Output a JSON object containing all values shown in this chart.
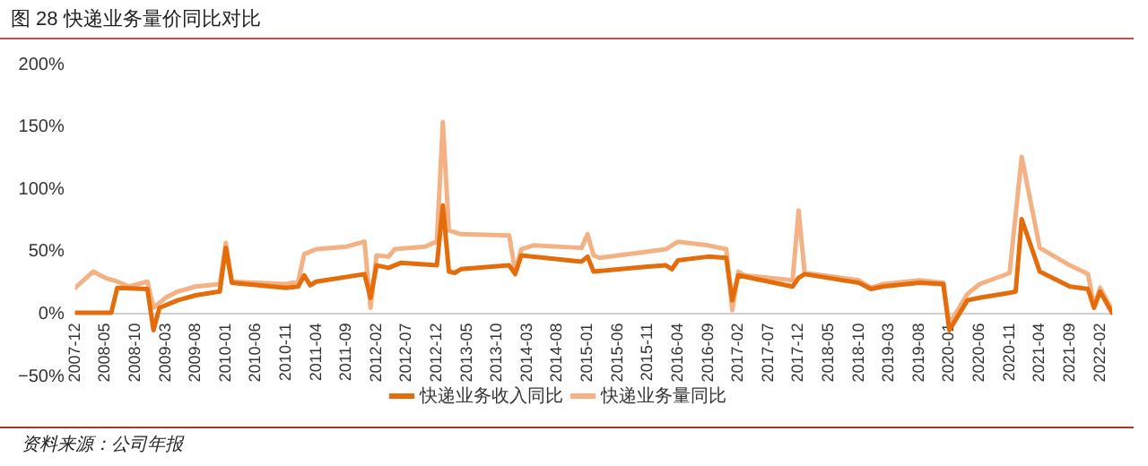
{
  "chart_data": {
    "type": "line",
    "title": "图 28 快递业务量价同比对比",
    "annotations": [
      "资料来源：公司年报"
    ],
    "legend": "bottom",
    "marker": "none",
    "line_style": "solid",
    "grid": false,
    "xlim": [
      "2007-12",
      "2022-04"
    ],
    "xticks": [
      "2007-12",
      "2008-05",
      "2008-10",
      "2009-03",
      "2009-08",
      "2010-01",
      "2010-06",
      "2010-11",
      "2011-04",
      "2011-09",
      "2012-02",
      "2012-07",
      "2012-12",
      "2013-05",
      "2013-10",
      "2014-03",
      "2014-08",
      "2015-01",
      "2015-06",
      "2015-11",
      "2016-04",
      "2016-09",
      "2017-02",
      "2017-07",
      "2017-12",
      "2018-05",
      "2018-10",
      "2019-03",
      "2019-08",
      "2020-01",
      "2020-06",
      "2020-11",
      "2021-04",
      "2021-09",
      "2022-02"
    ],
    "ylim": [
      -50,
      200
    ],
    "yticks": [
      {
        "value": -50,
        "label": "−50%"
      },
      {
        "value": 0,
        "label": "0%"
      },
      {
        "value": 50,
        "label": "50%"
      },
      {
        "value": 100,
        "label": "100%"
      },
      {
        "value": 150,
        "label": "150%"
      },
      {
        "value": 200,
        "label": "200%"
      }
    ],
    "series": [
      {
        "name": "快递业务收入同比",
        "color": "#e46c0a",
        "x": [
          "2007-12",
          "2008-06",
          "2008-07",
          "2008-12",
          "2009-01",
          "2009-02",
          "2009-05",
          "2009-08",
          "2009-12",
          "2010-01",
          "2010-02",
          "2010-11",
          "2011-01",
          "2011-02",
          "2011-03",
          "2011-04",
          "2011-12",
          "2012-01",
          "2012-02",
          "2012-04",
          "2012-06",
          "2012-12",
          "2013-01",
          "2013-02",
          "2013-03",
          "2013-04",
          "2013-12",
          "2014-01",
          "2014-02",
          "2014-12",
          "2015-01",
          "2015-02",
          "2015-11",
          "2016-02",
          "2016-03",
          "2016-04",
          "2016-09",
          "2016-12",
          "2017-01",
          "2017-02",
          "2017-11",
          "2017-12",
          "2018-01",
          "2018-10",
          "2018-12",
          "2019-02",
          "2019-08",
          "2019-12",
          "2020-01",
          "2020-04",
          "2020-06",
          "2020-11",
          "2020-12",
          "2021-01",
          "2021-04",
          "2021-09",
          "2021-12",
          "2022-01",
          "2022-02",
          "2022-04"
        ],
        "values": [
          1,
          1,
          21,
          20,
          -13,
          5,
          11,
          15,
          18,
          53,
          25,
          21,
          22,
          31,
          23,
          26,
          32,
          13,
          39,
          37,
          41,
          39,
          87,
          34,
          33,
          36,
          39,
          32,
          47,
          42,
          46,
          34,
          38,
          39,
          36,
          43,
          46,
          45,
          11,
          31,
          22,
          29,
          32,
          25,
          20,
          22,
          25,
          24,
          -13,
          11,
          13,
          17,
          18,
          76,
          34,
          22,
          20,
          5,
          18,
          1
        ]
      },
      {
        "name": "快递业务量同比",
        "color": "#f4b183",
        "x": [
          "2007-12",
          "2008-03",
          "2008-05",
          "2008-07",
          "2008-09",
          "2008-12",
          "2009-01",
          "2009-03",
          "2009-05",
          "2009-08",
          "2009-12",
          "2010-01",
          "2010-02",
          "2010-06",
          "2010-11",
          "2011-01",
          "2011-02",
          "2011-04",
          "2011-09",
          "2011-12",
          "2012-01",
          "2012-02",
          "2012-04",
          "2012-05",
          "2012-10",
          "2012-12",
          "2013-01",
          "2013-02",
          "2013-04",
          "2013-12",
          "2014-01",
          "2014-02",
          "2014-04",
          "2014-12",
          "2015-01",
          "2015-02",
          "2015-03",
          "2015-11",
          "2016-02",
          "2016-04",
          "2016-09",
          "2016-12",
          "2017-01",
          "2017-02",
          "2017-03",
          "2017-11",
          "2017-12",
          "2018-01",
          "2018-10",
          "2018-12",
          "2019-02",
          "2019-08",
          "2019-12",
          "2020-01",
          "2020-04",
          "2020-06",
          "2020-10",
          "2020-11",
          "2021-01",
          "2021-04",
          "2021-09",
          "2021-12",
          "2022-01",
          "2022-02",
          "2022-04"
        ],
        "values": [
          21,
          34,
          29,
          26,
          22,
          26,
          5,
          13,
          18,
          22,
          24,
          57,
          26,
          25,
          24,
          26,
          48,
          52,
          54,
          58,
          5,
          47,
          46,
          52,
          54,
          58,
          154,
          67,
          64,
          63,
          34,
          52,
          55,
          53,
          64,
          47,
          45,
          50,
          52,
          58,
          55,
          52,
          3,
          34,
          31,
          27,
          83,
          33,
          27,
          21,
          24,
          27,
          25,
          -8,
          16,
          24,
          31,
          33,
          126,
          53,
          39,
          32,
          6,
          21,
          3
        ]
      }
    ]
  }
}
